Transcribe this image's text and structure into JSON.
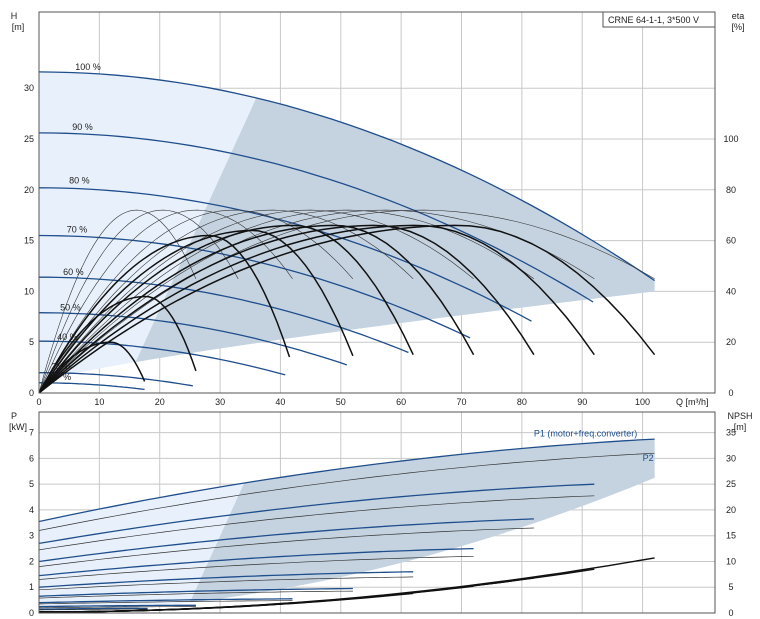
{
  "title": "CRNE 64-1-1, 3*500 V",
  "colors": {
    "region_light": "#e8f1fb",
    "region_dark": "#c5d3e1",
    "curve_blue": "#1f4e8c",
    "curve_black": "#111111",
    "grid": "#c8c8c8"
  },
  "chart_data": [
    {
      "type": "line",
      "name": "head-efficiency",
      "xlabel": "Q [m³/h]",
      "ylabel_left_top": "H",
      "ylabel_left_unit": "[m]",
      "ylabel_right_top": "eta",
      "ylabel_right_unit": "[%]",
      "xlim": [
        0,
        112
      ],
      "ylim_left": [
        0,
        37.5
      ],
      "ylim_right": [
        0,
        150
      ],
      "x_ticks": [
        0,
        10,
        20,
        30,
        40,
        50,
        60,
        70,
        80,
        90,
        100
      ],
      "y_ticks_left": [
        0,
        5,
        10,
        15,
        20,
        25,
        30
      ],
      "y_ticks_right": [
        0,
        20,
        40,
        60,
        80,
        100
      ],
      "grid": true,
      "speed_labels": [
        {
          "text": "100 %",
          "x": 6,
          "y": 31.8
        },
        {
          "text": "90 %",
          "x": 5.5,
          "y": 25.9
        },
        {
          "text": "80 %",
          "x": 5,
          "y": 20.6
        },
        {
          "text": "70 %",
          "x": 4.6,
          "y": 15.8
        },
        {
          "text": "60 %",
          "x": 4,
          "y": 11.6
        },
        {
          "text": "50 %",
          "x": 3.5,
          "y": 8.1
        },
        {
          "text": "40 %",
          "x": 3,
          "y": 5.2
        },
        {
          "text": "25 %",
          "x": 2,
          "y": 2.3
        },
        {
          "text": "%",
          "x": 4,
          "y": 1.3
        }
      ],
      "head_curves": [
        {
          "speed": 100,
          "shutoff": 31.6,
          "qmax": 102
        },
        {
          "speed": 90,
          "shutoff": 25.6,
          "qmax": 91.8
        },
        {
          "speed": 80,
          "shutoff": 20.2,
          "qmax": 81.6
        },
        {
          "speed": 70,
          "shutoff": 15.5,
          "qmax": 71.4
        },
        {
          "speed": 60,
          "shutoff": 11.4,
          "qmax": 61.2
        },
        {
          "speed": 50,
          "shutoff": 7.9,
          "qmax": 51
        },
        {
          "speed": 40,
          "shutoff": 5.1,
          "qmax": 40.8
        },
        {
          "speed": 25,
          "shutoff": 2.0,
          "qmax": 25.5
        },
        {
          "speed": 18,
          "shutoff": 1.0,
          "qmax": 17.5
        }
      ],
      "eta_curves_thin": [
        {
          "speed": 100,
          "qmax": 102,
          "peak": 72
        },
        {
          "speed": 90,
          "qmax": 92,
          "peak": 72
        },
        {
          "speed": 80,
          "qmax": 82,
          "peak": 72
        },
        {
          "speed": 70,
          "qmax": 72,
          "peak": 72
        },
        {
          "speed": 60,
          "qmax": 62,
          "peak": 72
        },
        {
          "speed": 50,
          "qmax": 52,
          "peak": 72
        },
        {
          "speed": 40,
          "qmax": 42,
          "peak": 72
        },
        {
          "speed": 30,
          "qmax": 33,
          "peak": 72
        },
        {
          "speed": 25,
          "qmax": 26,
          "peak": 72
        }
      ],
      "eta_curves_bold": [
        {
          "speed": 100,
          "qmax": 102,
          "peak": 66
        },
        {
          "speed": 90,
          "qmax": 92,
          "peak": 66
        },
        {
          "speed": 80,
          "qmax": 82,
          "peak": 66
        },
        {
          "speed": 70,
          "qmax": 72,
          "peak": 66
        },
        {
          "speed": 60,
          "qmax": 62,
          "peak": 66
        },
        {
          "speed": 50,
          "qmax": 52,
          "peak": 64
        },
        {
          "speed": 40,
          "qmax": 41.5,
          "peak": 62
        },
        {
          "speed": 25,
          "qmax": 26,
          "peak": 38
        },
        {
          "speed": 18,
          "qmax": 17.5,
          "peak": 20
        }
      ]
    },
    {
      "type": "line",
      "name": "power-npsh",
      "ylabel_left_top": "P",
      "ylabel_left_unit": "[kW]",
      "ylabel_right_top": "NPSH",
      "ylabel_right_unit": "[m]",
      "xlim": [
        0,
        112
      ],
      "ylim_left": [
        0,
        7.8
      ],
      "ylim_right": [
        0,
        39
      ],
      "x_ticks": [
        0,
        10,
        20,
        30,
        40,
        50,
        60,
        70,
        80,
        90,
        100
      ],
      "y_ticks_left": [
        0,
        1,
        2,
        3,
        4,
        5,
        6,
        7
      ],
      "y_ticks_right": [
        0,
        5,
        10,
        15,
        20,
        25,
        30,
        35
      ],
      "grid": true,
      "series_labels": [
        {
          "text": "P1 (motor+freq.converter)",
          "x": 82,
          "y": 6.85
        },
        {
          "text": "P2",
          "x": 100,
          "y": 5.9
        }
      ],
      "p1_curves": [
        {
          "speed": 100,
          "p0": 3.55,
          "pend": 6.75,
          "qmax": 102
        },
        {
          "speed": 90,
          "p0": 2.7,
          "pend": 5.0,
          "qmax": 92
        },
        {
          "speed": 80,
          "p0": 2.0,
          "pend": 3.65,
          "qmax": 82
        },
        {
          "speed": 70,
          "p0": 1.45,
          "pend": 2.5,
          "qmax": 72
        },
        {
          "speed": 60,
          "p0": 1.0,
          "pend": 1.6,
          "qmax": 62
        },
        {
          "speed": 50,
          "p0": 0.65,
          "pend": 0.95,
          "qmax": 52
        },
        {
          "speed": 40,
          "p0": 0.4,
          "pend": 0.55,
          "qmax": 42
        },
        {
          "speed": 25,
          "p0": 0.25,
          "pend": 0.3,
          "qmax": 26
        },
        {
          "speed": 18,
          "p0": 0.15,
          "pend": 0.18,
          "qmax": 18
        }
      ],
      "p2_curves": [
        {
          "speed": 100,
          "p0": 3.2,
          "pend": 6.2,
          "qmax": 102
        },
        {
          "speed": 90,
          "p0": 2.45,
          "pend": 4.55,
          "qmax": 92
        },
        {
          "speed": 80,
          "p0": 1.8,
          "pend": 3.3,
          "qmax": 82
        },
        {
          "speed": 70,
          "p0": 1.3,
          "pend": 2.2,
          "qmax": 72
        },
        {
          "speed": 60,
          "p0": 0.9,
          "pend": 1.4,
          "qmax": 62
        },
        {
          "speed": 50,
          "p0": 0.58,
          "pend": 0.85,
          "qmax": 52
        },
        {
          "speed": 40,
          "p0": 0.35,
          "pend": 0.48,
          "qmax": 42
        },
        {
          "speed": 25,
          "p0": 0.2,
          "pend": 0.25,
          "qmax": 26
        },
        {
          "speed": 18,
          "p0": 0.12,
          "pend": 0.15,
          "qmax": 18
        }
      ],
      "npsh_curves": [
        {
          "qmax": 102,
          "end": 10.7
        },
        {
          "qmax": 92,
          "end": 8.5
        },
        {
          "qmax": 82,
          "end": 6.8
        },
        {
          "qmax": 72,
          "end": 5.2
        },
        {
          "qmax": 62,
          "end": 3.8
        },
        {
          "qmax": 52,
          "end": 2.8
        },
        {
          "qmax": 42,
          "end": 2.0
        }
      ]
    }
  ]
}
